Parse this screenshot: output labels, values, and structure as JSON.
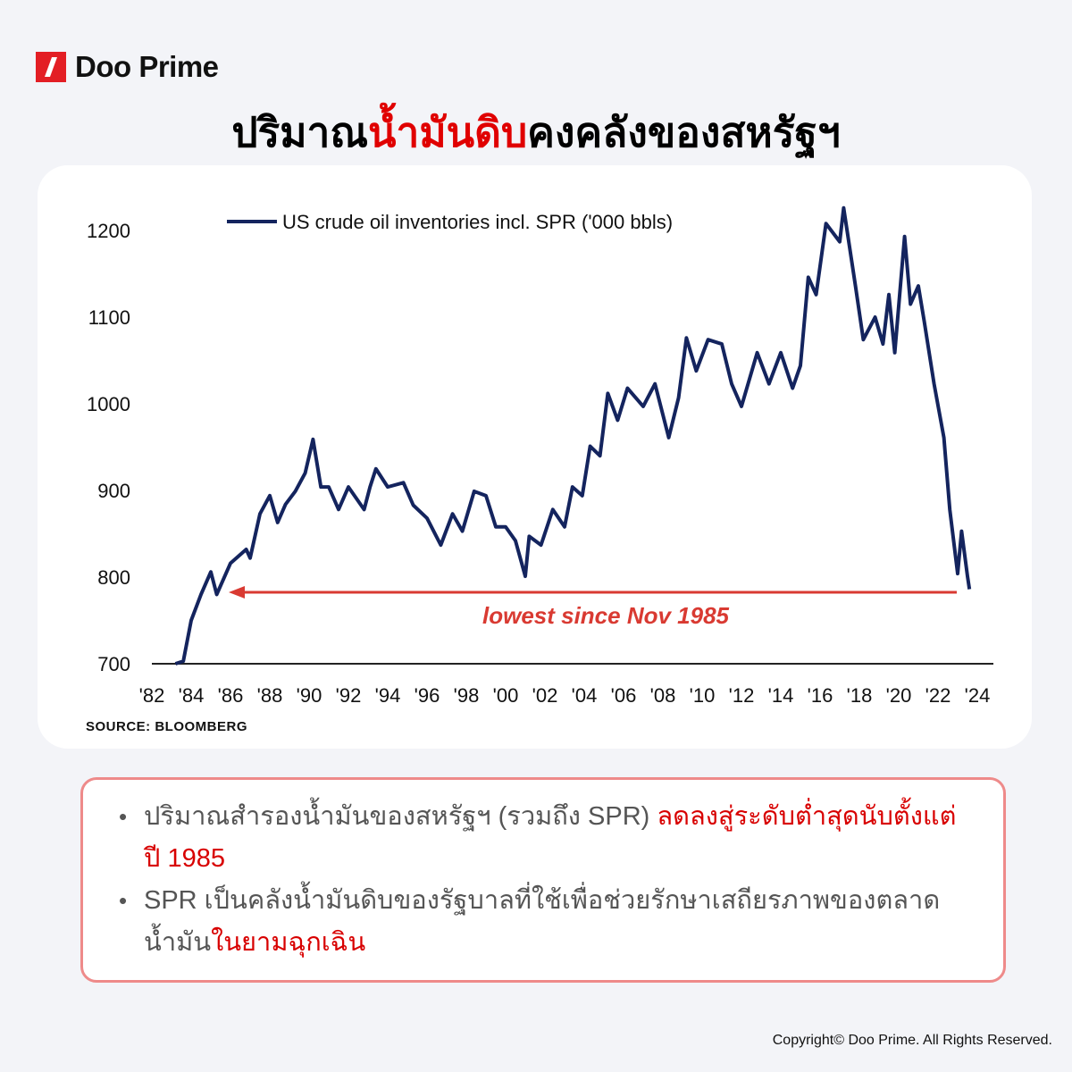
{
  "brand": {
    "name": "Doo Prime"
  },
  "title": {
    "part1": "ปริมาณ",
    "part2": "น้ำมันดิบ",
    "part3": "คงคลังของสหรัฐฯ"
  },
  "source": "SOURCE: BLOOMBERG",
  "bullets": [
    {
      "normal": "ปริมาณสำรองน้ำมันของสหรัฐฯ (รวมถึง SPR) ",
      "highlight": "ลดลงสู่ระดับต่ำสุดนับตั้งแต่ปี 1985"
    },
    {
      "normal": "SPR เป็นคลังน้ำมันดิบของรัฐบาลที่ใช้เพื่อช่วยรักษาเสถียรภาพของตลาดน้ำมัน",
      "highlight": "ในยามฉุกเฉิน"
    }
  ],
  "copyright": "Copyright© Doo Prime. All Rights Reserved.",
  "colors": {
    "brand_red": "#e31e24",
    "series": "#14245e",
    "annotation": "#d93a32",
    "box_border": "#ee8a8a"
  },
  "chart_data": {
    "type": "line",
    "legend": "US crude oil inventories incl. SPR ('000 bbls)",
    "legend_position": "top-left",
    "grid": false,
    "ylim": [
      700,
      1250
    ],
    "yticks": [
      700,
      800,
      900,
      1000,
      1100,
      1200
    ],
    "xlim": [
      1982,
      2024
    ],
    "xticks": [
      "'82",
      "'84",
      "'86",
      "'88",
      "'90",
      "'92",
      "'94",
      "'96",
      "'98",
      "'00",
      "'02",
      "'04",
      "'06",
      "'08",
      "'10",
      "'12",
      "'14",
      "'16",
      "'18",
      "'20",
      "'22",
      "'24"
    ],
    "annotation": {
      "text": "lowest since Nov 1985",
      "value": 786,
      "from_year": 1986,
      "to_year": 2022.5
    },
    "series": [
      {
        "name": "US crude oil inventories incl. SPR ('000 bbls)",
        "x": [
          1983.2,
          1983.6,
          1984,
          1984.5,
          1985,
          1985.3,
          1986,
          1986.8,
          1987,
          1987.5,
          1988,
          1988.4,
          1988.8,
          1989.3,
          1989.8,
          1990.2,
          1990.6,
          1991,
          1991.5,
          1992,
          1992.8,
          1993.1,
          1993.4,
          1994,
          1994.8,
          1995.3,
          1996,
          1996.7,
          1997.3,
          1997.8,
          1998.4,
          1999,
          1999.5,
          2000,
          2000.5,
          2001,
          2001.2,
          2001.8,
          2002.4,
          2003,
          2003.4,
          2003.9,
          2004.3,
          2004.8,
          2005.2,
          2005.7,
          2006.2,
          2007,
          2007.6,
          2008.3,
          2008.8,
          2009.2,
          2009.7,
          2010.3,
          2011,
          2011.5,
          2012,
          2012.8,
          2013.4,
          2014,
          2014.6,
          2015,
          2015.4,
          2015.8,
          2016.3,
          2017,
          2017.2,
          2017.8,
          2018.2,
          2018.8,
          2019.2,
          2019.5,
          2019.8,
          2020.3,
          2020.6,
          2021,
          2021.3,
          2021.8,
          2022.3,
          2022.6,
          2023,
          2023.2,
          2023.5,
          2023.6
        ],
        "values": [
          700,
          703,
          750,
          780,
          806,
          780,
          816,
          832,
          822,
          873,
          894,
          863,
          884,
          899,
          920,
          959,
          904,
          904,
          878,
          904,
          878,
          904,
          925,
          904,
          909,
          883,
          868,
          837,
          873,
          853,
          899,
          894,
          858,
          858,
          842,
          801,
          847,
          837,
          878,
          858,
          904,
          894,
          951,
          940,
          1012,
          981,
          1018,
          997,
          1023,
          961,
          1007,
          1076,
          1038,
          1074,
          1069,
          1023,
          997,
          1059,
          1023,
          1059,
          1018,
          1044,
          1146,
          1126,
          1208,
          1187,
          1226,
          1136,
          1074,
          1100,
          1069,
          1126,
          1059,
          1193,
          1115,
          1136,
          1095,
          1023,
          961,
          878,
          804,
          853,
          801,
          786
        ]
      }
    ]
  }
}
